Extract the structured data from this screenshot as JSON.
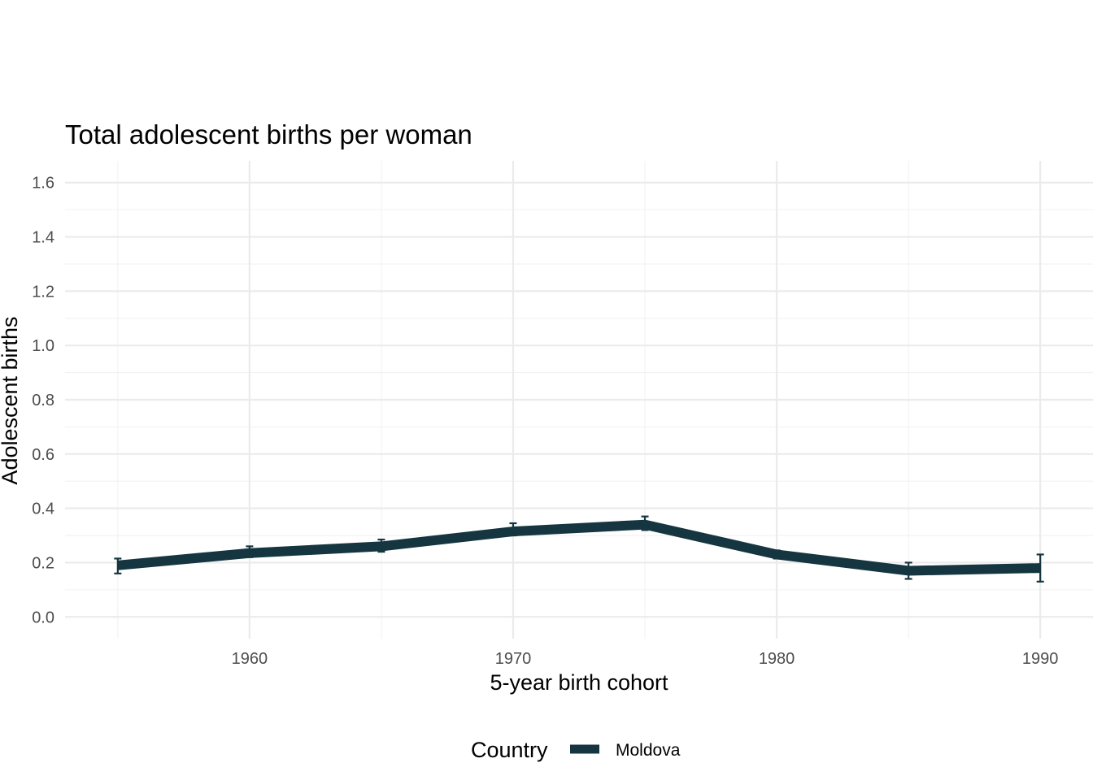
{
  "chart_data": {
    "type": "line",
    "title": "Total adolescent births per woman",
    "xlabel": "5-year birth cohort",
    "ylabel": "Adolescent births",
    "x": [
      1955,
      1960,
      1965,
      1970,
      1975,
      1980,
      1985,
      1990
    ],
    "xlim": [
      1953,
      1992
    ],
    "ylim": [
      -0.08,
      1.68
    ],
    "x_ticks": [
      1960,
      1970,
      1980,
      1990
    ],
    "x_tick_labels": [
      "1960",
      "1970",
      "1980",
      "1990"
    ],
    "y_ticks": [
      0.0,
      0.2,
      0.4,
      0.6,
      0.8,
      1.0,
      1.2,
      1.4,
      1.6
    ],
    "y_tick_labels": [
      "0.0",
      "0.2",
      "0.4",
      "0.6",
      "0.8",
      "1.0",
      "1.2",
      "1.4",
      "1.6"
    ],
    "grid": true,
    "legend": {
      "title": "Country",
      "position": "bottom",
      "entries": [
        "Moldova"
      ]
    },
    "series": [
      {
        "name": "Moldova",
        "color": "#153640",
        "values": [
          0.19,
          0.235,
          0.26,
          0.315,
          0.34,
          0.23,
          0.17,
          0.18
        ],
        "error_low": [
          0.16,
          0.22,
          0.24,
          0.3,
          0.32,
          0.215,
          0.14,
          0.13
        ],
        "error_high": [
          0.215,
          0.26,
          0.285,
          0.345,
          0.37,
          0.245,
          0.2,
          0.23
        ]
      }
    ]
  }
}
